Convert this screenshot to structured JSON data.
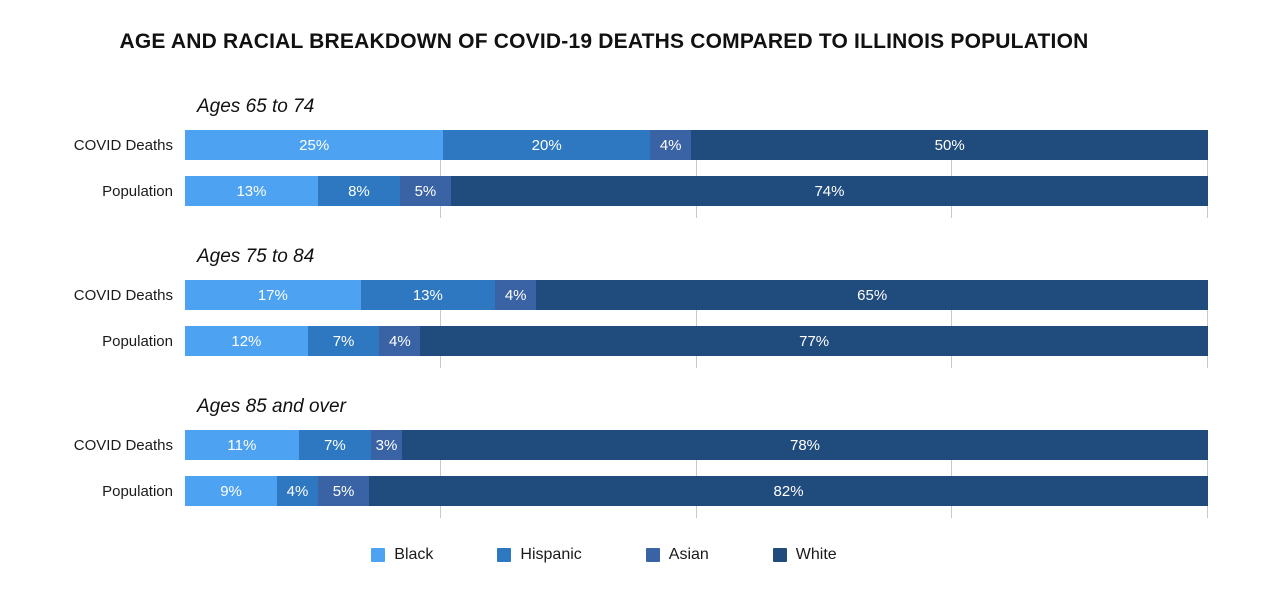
{
  "chart_data": {
    "type": "bar",
    "stacked": true,
    "orientation": "horizontal",
    "title": "AGE AND RACIAL BREAKDOWN OF COVID-19 DEATHS COMPARED TO ILLINOIS POPULATION",
    "xlabel": "",
    "ylabel": "",
    "xlim": [
      0,
      100
    ],
    "unit": "%",
    "gridlines_percent": [
      25,
      50,
      75,
      100
    ],
    "series_labels": [
      "Black",
      "Hispanic",
      "Asian",
      "White"
    ],
    "colors": {
      "Black": "#4DA2F2",
      "Hispanic": "#2E78C2",
      "Asian": "#3A63A5",
      "White": "#204B7D"
    },
    "groups": [
      {
        "label": "Ages 65 to 74",
        "rows": [
          {
            "label": "COVID Deaths",
            "values": [
              25,
              20,
              4,
              50
            ]
          },
          {
            "label": "Population",
            "values": [
              13,
              8,
              5,
              74
            ]
          }
        ]
      },
      {
        "label": "Ages 75 to 84",
        "rows": [
          {
            "label": "COVID Deaths",
            "values": [
              17,
              13,
              4,
              65
            ]
          },
          {
            "label": "Population",
            "values": [
              12,
              7,
              4,
              77
            ]
          }
        ]
      },
      {
        "label": "Ages 85 and over",
        "rows": [
          {
            "label": "COVID Deaths",
            "values": [
              11,
              7,
              3,
              78
            ]
          },
          {
            "label": "Population",
            "values": [
              9,
              4,
              5,
              82
            ]
          }
        ]
      }
    ],
    "legend": [
      {
        "label": "Black",
        "color": "#4DA2F2"
      },
      {
        "label": "Hispanic",
        "color": "#2E78C2"
      },
      {
        "label": "Asian",
        "color": "#3A63A5"
      },
      {
        "label": "White",
        "color": "#204B7D"
      }
    ],
    "legend_position": "bottom"
  }
}
